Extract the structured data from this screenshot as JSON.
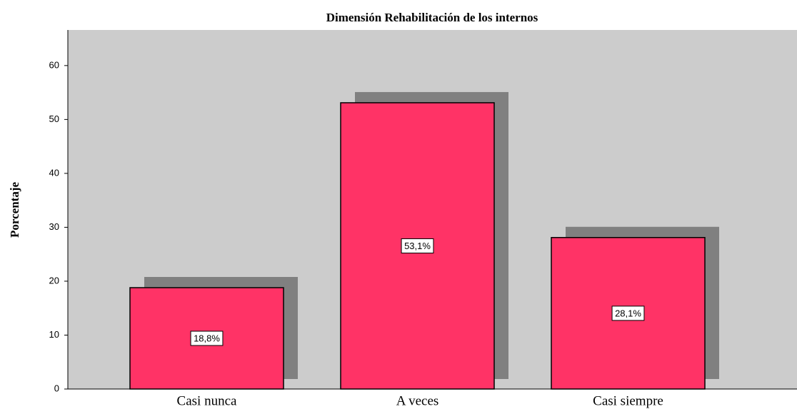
{
  "chart_data": {
    "type": "bar",
    "title": "Dimensión Rehabilitación de los internos",
    "y_label": "Porcentaje",
    "categories": [
      "Casi nunca",
      "A veces",
      "Casi siempre"
    ],
    "values": [
      18.8,
      53.1,
      28.1
    ],
    "value_labels": [
      "18,8%",
      "53,1%",
      "28,1%"
    ],
    "color": "#ff3366",
    "ylim": [
      0,
      66.6
    ],
    "yticks": [
      0,
      10,
      20,
      30,
      40,
      50,
      60
    ],
    "grid": false
  }
}
